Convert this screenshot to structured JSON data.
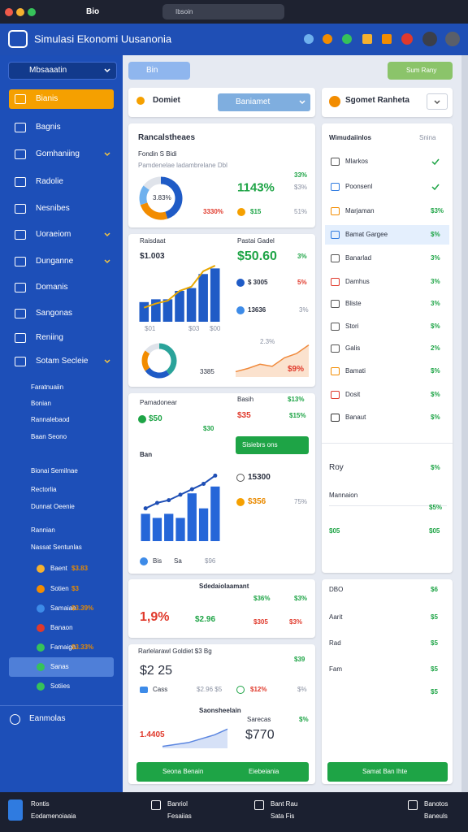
{
  "browser": {
    "tab": "Bio",
    "address": "Ibsoin"
  },
  "header": {
    "title": "Simulasi Ekonomi Uusanonia"
  },
  "sidebar": {
    "search": "Mbsaaatin",
    "items": [
      {
        "label": "Bianis",
        "active": true
      },
      {
        "label": "Bagnis"
      },
      {
        "label": "Gomhaniing",
        "chevron": true
      },
      {
        "label": "Radolie"
      },
      {
        "label": "Nesnibes"
      },
      {
        "label": "Uoraeiom",
        "chevron": true
      },
      {
        "label": "Dunganne",
        "chevron": true
      },
      {
        "label": "Domanis"
      },
      {
        "label": "Sangonas"
      },
      {
        "label": "Reniing"
      },
      {
        "label": "Sotam Secleie",
        "chevron": true
      }
    ],
    "subitems": [
      "Faratnuaiin",
      "Bonian",
      "Rannalebaod",
      "Baan Seono",
      "Bionai Semilnae",
      "Rectorlia",
      "Dunnat Oeenie",
      "Rannian",
      "Nassat Sentunlas"
    ],
    "icon_rows": [
      {
        "label": "Baent",
        "value": "$3.83"
      },
      {
        "label": "Sotien",
        "value": "$3"
      },
      {
        "label": "Samaiae",
        "value": "$3.39%"
      },
      {
        "label": "Banaon"
      },
      {
        "label": "Famaign",
        "value": "$3.33%"
      },
      {
        "label": "Sanas",
        "active": true
      },
      {
        "label": "Sotiies"
      }
    ],
    "footer": "Eanmolas"
  },
  "toolbar": {
    "left_button": "Bin",
    "right_button": "Sum Rany"
  },
  "main": {
    "header": {
      "title": "Domiet",
      "dropdown": "Baniamet"
    },
    "card_b": {
      "title": "Rancalstheaes",
      "subtitle": "Fondin S Bidi",
      "note": "Pamdenelae ladambrelane Dbl",
      "donut_label": "3.83%",
      "big": "1143%",
      "a": "33%",
      "b": "$3%",
      "c": "3330%",
      "d": "$15",
      "e": "51%",
      "donut": {
        "values": [
          45,
          25,
          15,
          15
        ],
        "colors": [
          "#1f5bc6",
          "#f28c00",
          "#6fb1ee",
          "#dfe3ea"
        ]
      }
    },
    "card_c": {
      "title": "Raisdaat",
      "value": "$1.003",
      "axis": [
        "$01",
        "$03",
        "$00"
      ],
      "right_title": "Pastai Gadel",
      "r1": "$50.60",
      "r1b": "3%",
      "r2": "$ 3005",
      "r2b": "5%",
      "r3": "13636",
      "r3b": "3%",
      "donut_label": "3385",
      "area_label": "2.3%",
      "area_value": "$9%",
      "chart": {
        "bars": [
          14,
          16,
          16,
          22,
          24,
          34,
          38
        ],
        "line": [
          10,
          13,
          15,
          22,
          25,
          36,
          40
        ],
        "ylim": [
          0,
          44
        ],
        "bar_color": "#1f5bc6",
        "line_color": "#e8a700"
      },
      "donut": {
        "values": [
          40,
          25,
          20,
          15
        ],
        "colors": [
          "#2aa39a",
          "#1f5bc6",
          "#f28c00",
          "#dfe3ea"
        ]
      },
      "area": {
        "values": [
          5,
          8,
          12,
          10,
          18,
          22,
          30
        ],
        "ylim": [
          0,
          32
        ],
        "color": "#f08a3c"
      }
    },
    "card_d": {
      "title": "Pamadonear",
      "v1": "$50",
      "v2": "$30",
      "label": "Ban",
      "legend": [
        "Bis",
        "Sa",
        "$96"
      ],
      "right_title": "Basih",
      "r1": "$35",
      "r1b": "$13%",
      "r1c": "$15%",
      "button": "Sisiebrs ons",
      "r2": "15300",
      "r3": "$356",
      "r3b": "75%",
      "chart": {
        "bars": [
          20,
          17,
          20,
          17,
          35,
          24,
          40
        ],
        "line": [
          24,
          28,
          30,
          34,
          38,
          42,
          48
        ],
        "ylim": [
          0,
          50
        ],
        "bar_color": "#2566d8",
        "line_color": "#1f4fb5"
      }
    },
    "card_e": {
      "title": "Sdedaiolaamant",
      "a": "$36%",
      "b": "$3%",
      "big": "1,9%",
      "c": "$2.96",
      "d": "$305",
      "e": "$3%"
    },
    "card_f": {
      "title": "Rarlelarawl Goldiet $3 Bg",
      "corner": "$39",
      "big": "$2 25",
      "cass": "Cass",
      "a": "$2.96 $5",
      "b": "$12%",
      "c": "$%",
      "sub": "Saonsheelain",
      "d": "Sarecas",
      "e": "$%",
      "f": "1.4405",
      "g": "$770",
      "area": {
        "values": [
          2,
          4,
          6,
          10,
          14,
          20
        ],
        "ylim": [
          0,
          22
        ],
        "color": "#5b86e0"
      },
      "button_left": "Seona Benain",
      "button_right": "Eiebeiania"
    }
  },
  "right": {
    "header": "Sgomet Ranheta",
    "list_title": "Wimudaiinlos",
    "list_tag": "Snina",
    "rows": [
      {
        "label": "Mlarkos",
        "check": true
      },
      {
        "label": "Poonsenl",
        "check": true
      },
      {
        "label": "Marjaman",
        "value": "$3%"
      },
      {
        "label": "Bamat Gargee",
        "value": "$%",
        "active": true
      },
      {
        "label": "Banarlad",
        "value": "3%"
      },
      {
        "label": "Damhus",
        "value": "3%"
      },
      {
        "label": "Bliste",
        "value": "3%"
      },
      {
        "label": "Stori",
        "value": "$%"
      },
      {
        "label": "Galis",
        "value": "2%"
      },
      {
        "label": "Bamati",
        "value": "$%"
      },
      {
        "label": "Dosit",
        "value": "$%"
      },
      {
        "label": "Banaut",
        "value": "$%"
      }
    ],
    "roy": {
      "label": "Roy",
      "value": "$%",
      "sub": "Mannaion",
      "a": "$5%",
      "b": "$05",
      "c": "$05"
    },
    "bottom": [
      {
        "label": "DBO",
        "value": "$6"
      },
      {
        "label": "Aarit",
        "value": "$5"
      },
      {
        "label": "Rad",
        "value": "$5"
      },
      {
        "label": "Fam",
        "value": "$5"
      },
      {
        "value": "$5"
      }
    ],
    "button": "Samat Ban Ihte"
  },
  "bottom_bar": [
    {
      "top": "Rontis",
      "bottom": "Eodamenoiaaia"
    },
    {
      "top": "Banriol",
      "bottom": "Fesaiias"
    },
    {
      "top": "Bant Rau",
      "bottom": "Sata Fis"
    },
    {
      "top": "Banotos",
      "bottom": "Baneuls"
    }
  ]
}
